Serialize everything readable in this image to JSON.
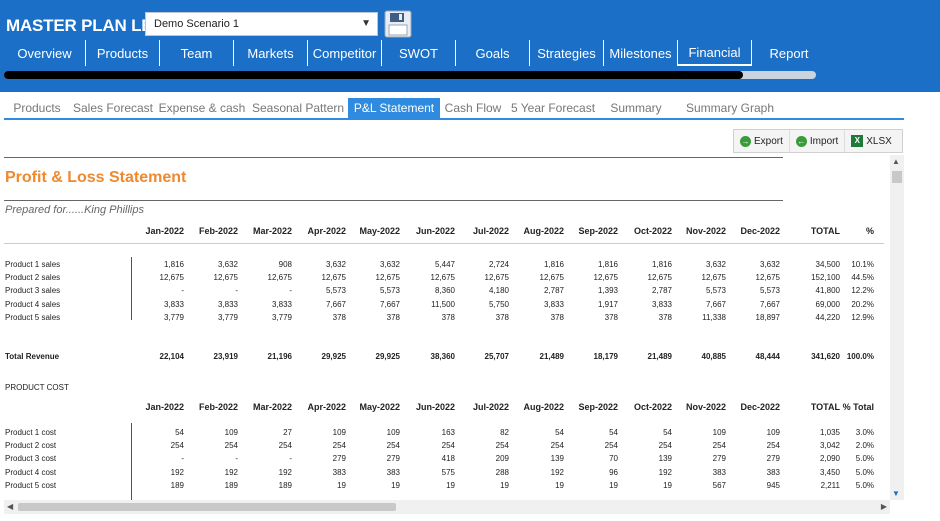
{
  "app": {
    "title": "MASTER PLAN LEAN",
    "scenario": "Demo Scenario 1",
    "save_icon": "floppy-disk-icon"
  },
  "nav": [
    "Overview",
    "Products",
    "Team",
    "Markets",
    "Competitor",
    "SWOT",
    "Goals",
    "Strategies",
    "Milestones",
    "Financial",
    "Report"
  ],
  "nav_active": "Financial",
  "progress": {
    "fraction": 0.91
  },
  "subtabs": [
    "Products",
    "Sales Forecast",
    "Expense & cash",
    "Seasonal Pattern",
    "P&L Statement",
    "Cash Flow",
    "5 Year Forecast",
    "Summary",
    "Summary Graph"
  ],
  "subtab_active": "P&L Statement",
  "toolbar": {
    "export": "Export",
    "import": "Import",
    "xlsx": "XLSX"
  },
  "report": {
    "title": "Profit & Loss Statement",
    "prepared_for": "Prepared for......King Phillips",
    "months": [
      "Jan-2022",
      "Feb-2022",
      "Mar-2022",
      "Apr-2022",
      "May-2022",
      "Jun-2022",
      "Jul-2022",
      "Aug-2022",
      "Sep-2022",
      "Oct-2022",
      "Nov-2022",
      "Dec-2022"
    ],
    "total_label": "TOTAL",
    "pct_label": "%",
    "sales_rows": [
      {
        "label": "Product 1 sales",
        "values": [
          "1,816",
          "3,632",
          "908",
          "3,632",
          "3,632",
          "5,447",
          "2,724",
          "1,816",
          "1,816",
          "1,816",
          "3,632",
          "3,632"
        ],
        "total": "34,500",
        "pct": "10.1%"
      },
      {
        "label": "Product 2 sales",
        "values": [
          "12,675",
          "12,675",
          "12,675",
          "12,675",
          "12,675",
          "12,675",
          "12,675",
          "12,675",
          "12,675",
          "12,675",
          "12,675",
          "12,675"
        ],
        "total": "152,100",
        "pct": "44.5%"
      },
      {
        "label": "Product 3 sales",
        "values": [
          "-",
          "-",
          "-",
          "5,573",
          "5,573",
          "8,360",
          "4,180",
          "2,787",
          "1,393",
          "2,787",
          "5,573",
          "5,573"
        ],
        "total": "41,800",
        "pct": "12.2%"
      },
      {
        "label": "Product 4 sales",
        "values": [
          "3,833",
          "3,833",
          "3,833",
          "7,667",
          "7,667",
          "11,500",
          "5,750",
          "3,833",
          "1,917",
          "3,833",
          "7,667",
          "7,667"
        ],
        "total": "69,000",
        "pct": "20.2%"
      },
      {
        "label": "Product 5 sales",
        "values": [
          "3,779",
          "3,779",
          "3,779",
          "378",
          "378",
          "378",
          "378",
          "378",
          "378",
          "378",
          "11,338",
          "18,897"
        ],
        "total": "44,220",
        "pct": "12.9%"
      }
    ],
    "total_revenue": {
      "label": "Total Revenue",
      "values": [
        "22,104",
        "23,919",
        "21,196",
        "29,925",
        "29,925",
        "38,360",
        "25,707",
        "21,489",
        "18,179",
        "21,489",
        "40,885",
        "48,444"
      ],
      "total": "341,620",
      "pct": "100.0%"
    },
    "product_cost_label": "PRODUCT COST",
    "cost_total_label": "TOTAL",
    "cost_pct_label": "% Total",
    "cost_rows": [
      {
        "label": "Product 1 cost",
        "values": [
          "54",
          "109",
          "27",
          "109",
          "109",
          "163",
          "82",
          "54",
          "54",
          "54",
          "109",
          "109"
        ],
        "total": "1,035",
        "pct": "3.0%"
      },
      {
        "label": "Product 2 cost",
        "values": [
          "254",
          "254",
          "254",
          "254",
          "254",
          "254",
          "254",
          "254",
          "254",
          "254",
          "254",
          "254"
        ],
        "total": "3,042",
        "pct": "2.0%"
      },
      {
        "label": "Product 3 cost",
        "values": [
          "-",
          "-",
          "-",
          "279",
          "279",
          "418",
          "209",
          "139",
          "70",
          "139",
          "279",
          "279"
        ],
        "total": "2,090",
        "pct": "5.0%"
      },
      {
        "label": "Product 4 cost",
        "values": [
          "192",
          "192",
          "192",
          "383",
          "383",
          "575",
          "288",
          "192",
          "96",
          "192",
          "383",
          "383"
        ],
        "total": "3,450",
        "pct": "5.0%"
      },
      {
        "label": "Product 5 cost",
        "values": [
          "189",
          "189",
          "189",
          "19",
          "19",
          "19",
          "19",
          "19",
          "19",
          "19",
          "567",
          "945"
        ],
        "total": "2,211",
        "pct": "5.0%"
      }
    ]
  }
}
